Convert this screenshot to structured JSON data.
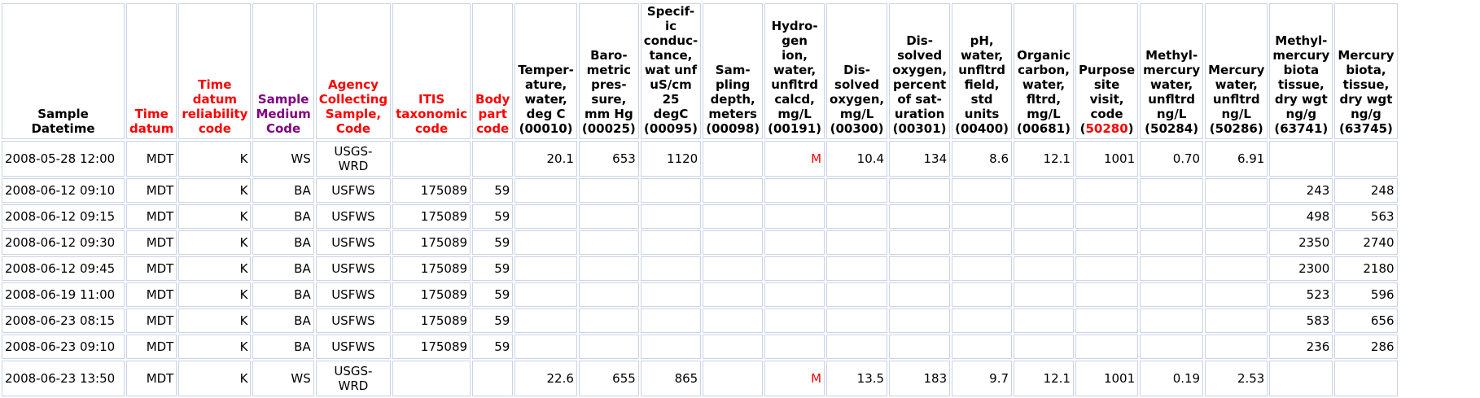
{
  "colors": {
    "red": "#ff0000",
    "purple": "#800080",
    "black": "#000000",
    "cell_border": "#c9d3e6"
  },
  "columns": [
    {
      "key": "datetime",
      "color": "black",
      "lines": [
        "Sample",
        "Datetime"
      ],
      "align": "left"
    },
    {
      "key": "time_datum",
      "color": "red",
      "lines": [
        "Time",
        "datum"
      ],
      "align": "right"
    },
    {
      "key": "reliability",
      "color": "red",
      "lines": [
        "Time",
        "datum",
        "reliability",
        "code"
      ],
      "align": "right"
    },
    {
      "key": "medium",
      "color": "purple",
      "lines": [
        "Sample",
        "Medium",
        "Code"
      ],
      "align": "right"
    },
    {
      "key": "agency",
      "color": "red",
      "lines": [
        "Agency",
        "Collecting",
        "Sample,",
        "Code"
      ],
      "align": "center"
    },
    {
      "key": "itis",
      "color": "red",
      "lines": [
        "ITIS",
        "taxonomic",
        "code"
      ],
      "align": "right"
    },
    {
      "key": "body_part",
      "color": "red",
      "lines": [
        "Body",
        "part",
        "code"
      ],
      "align": "right"
    },
    {
      "key": "p00010",
      "color": "black",
      "lines": [
        "Temper-",
        "ature,",
        "water,",
        "deg C",
        "(00010)"
      ],
      "align": "right"
    },
    {
      "key": "p00025",
      "color": "black",
      "lines": [
        "Baro-",
        "metric",
        "pres-",
        "sure,",
        "mm Hg",
        "(00025)"
      ],
      "align": "right"
    },
    {
      "key": "p00095",
      "color": "black",
      "lines": [
        "Specif-",
        "ic",
        "conduc-",
        "tance,",
        "wat unf",
        "uS/cm",
        "25 degC",
        "(00095)"
      ],
      "align": "right"
    },
    {
      "key": "p00098",
      "color": "black",
      "lines": [
        "Sam-",
        "pling",
        "depth,",
        "meters",
        "(00098)"
      ],
      "align": "right"
    },
    {
      "key": "p00191",
      "color": "black",
      "lines": [
        "Hydro-",
        "gen",
        "ion,",
        "water,",
        "unfltrd",
        "calcd,",
        "mg/L",
        "(00191)"
      ],
      "align": "right"
    },
    {
      "key": "p00300",
      "color": "black",
      "lines": [
        "Dis-",
        "solved",
        "oxygen,",
        "mg/L",
        "(00300)"
      ],
      "align": "right"
    },
    {
      "key": "p00301",
      "color": "black",
      "lines": [
        "Dis-",
        "solved",
        "oxygen,",
        "percent",
        "of sat-",
        "uration",
        "(00301)"
      ],
      "align": "right"
    },
    {
      "key": "p00400",
      "color": "black",
      "lines": [
        "pH,",
        "water,",
        "unfltrd",
        "field,",
        "std",
        "units",
        "(00400)"
      ],
      "align": "right"
    },
    {
      "key": "p00681",
      "color": "black",
      "lines": [
        "Organic",
        "carbon,",
        "water,",
        "fltrd,",
        "mg/L",
        "(00681)"
      ],
      "align": "right"
    },
    {
      "key": "p50280",
      "color": "black",
      "lines": [
        "Purpose",
        "site",
        "visit,",
        "code"
      ],
      "code_red": "(50280)",
      "align": "right"
    },
    {
      "key": "p50284",
      "color": "black",
      "lines": [
        "Methyl-",
        "mercury",
        "water,",
        "unfltrd",
        "ng/L",
        "(50284)"
      ],
      "align": "right"
    },
    {
      "key": "p50286",
      "color": "black",
      "lines": [
        "Mercury",
        "water,",
        "unfltrd",
        "ng/L",
        "(50286)"
      ],
      "align": "right"
    },
    {
      "key": "p63741",
      "color": "black",
      "lines": [
        "Methyl-",
        "mercury",
        "biota",
        "tissue,",
        "dry wgt",
        "ng/g",
        "(63741)"
      ],
      "align": "right"
    },
    {
      "key": "p63745",
      "color": "black",
      "lines": [
        "Mercury",
        "biota,",
        "tissue,",
        "dry wgt",
        "ng/g",
        "(63745)"
      ],
      "align": "right"
    }
  ],
  "rows": [
    {
      "tall": true,
      "cells": [
        "2008-05-28 12:00",
        "MDT",
        "K",
        "WS",
        "USGS-WRD",
        "",
        "",
        "20.1",
        "653",
        "1120",
        "",
        "M",
        "10.4",
        "134",
        "8.6",
        "12.1",
        "1001",
        "0.70",
        "6.91",
        "",
        ""
      ]
    },
    {
      "tall": false,
      "cells": [
        "2008-06-12 09:10",
        "MDT",
        "K",
        "BA",
        "USFWS",
        "175089",
        "59",
        "",
        "",
        "",
        "",
        "",
        "",
        "",
        "",
        "",
        "",
        "",
        "",
        "243",
        "248"
      ]
    },
    {
      "tall": false,
      "cells": [
        "2008-06-12 09:15",
        "MDT",
        "K",
        "BA",
        "USFWS",
        "175089",
        "59",
        "",
        "",
        "",
        "",
        "",
        "",
        "",
        "",
        "",
        "",
        "",
        "",
        "498",
        "563"
      ]
    },
    {
      "tall": false,
      "cells": [
        "2008-06-12 09:30",
        "MDT",
        "K",
        "BA",
        "USFWS",
        "175089",
        "59",
        "",
        "",
        "",
        "",
        "",
        "",
        "",
        "",
        "",
        "",
        "",
        "",
        "2350",
        "2740"
      ]
    },
    {
      "tall": false,
      "cells": [
        "2008-06-12 09:45",
        "MDT",
        "K",
        "BA",
        "USFWS",
        "175089",
        "59",
        "",
        "",
        "",
        "",
        "",
        "",
        "",
        "",
        "",
        "",
        "",
        "",
        "2300",
        "2180"
      ]
    },
    {
      "tall": false,
      "cells": [
        "2008-06-19 11:00",
        "MDT",
        "K",
        "BA",
        "USFWS",
        "175089",
        "59",
        "",
        "",
        "",
        "",
        "",
        "",
        "",
        "",
        "",
        "",
        "",
        "",
        "523",
        "596"
      ]
    },
    {
      "tall": false,
      "cells": [
        "2008-06-23 08:15",
        "MDT",
        "K",
        "BA",
        "USFWS",
        "175089",
        "59",
        "",
        "",
        "",
        "",
        "",
        "",
        "",
        "",
        "",
        "",
        "",
        "",
        "583",
        "656"
      ]
    },
    {
      "tall": false,
      "cells": [
        "2008-06-23 09:10",
        "MDT",
        "K",
        "BA",
        "USFWS",
        "175089",
        "59",
        "",
        "",
        "",
        "",
        "",
        "",
        "",
        "",
        "",
        "",
        "",
        "",
        "236",
        "286"
      ]
    },
    {
      "tall": true,
      "cells": [
        "2008-06-23 13:50",
        "MDT",
        "K",
        "WS",
        "USGS-WRD",
        "",
        "",
        "22.6",
        "655",
        "865",
        "",
        "M",
        "13.5",
        "183",
        "9.7",
        "12.1",
        "1001",
        "0.19",
        "2.53",
        "",
        ""
      ]
    }
  ]
}
